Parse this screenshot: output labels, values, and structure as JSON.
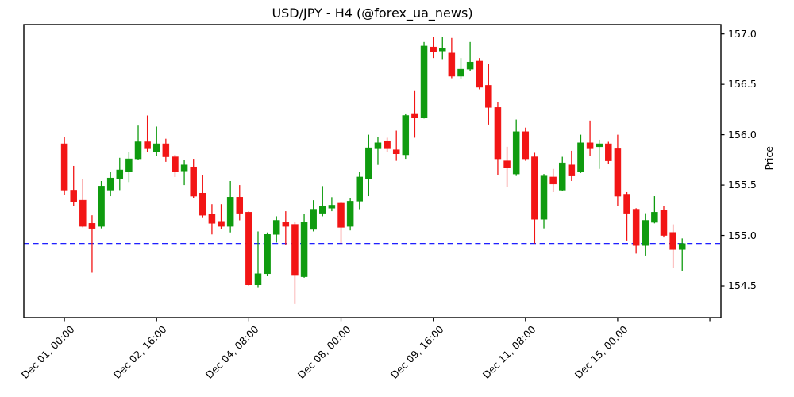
{
  "figure": {
    "background": "#ffffff"
  },
  "chart_data": {
    "type": "candlestick",
    "title": "USD/JPY - H4 (@forex_ua_news)",
    "pair": "USD/JPY",
    "timeframe": "H4",
    "source": "@forex_ua_news",
    "xlabel": "",
    "ylabel": "Price",
    "grid": false,
    "legend": "none",
    "up_color": "#0f9b0f",
    "down_color": "#f21515",
    "axis_color": "#000000",
    "hline": {
      "value": 154.92,
      "color": "#0000ff",
      "style": "dashed"
    },
    "ylim": [
      154.185,
      157.092
    ],
    "xlim": [
      -4.4,
      71.2
    ],
    "yticks": [
      {
        "value": 154.5,
        "label": "154.5"
      },
      {
        "value": 155.0,
        "label": "155.0"
      },
      {
        "value": 155.5,
        "label": "155.5"
      },
      {
        "value": 156.0,
        "label": "156.0"
      },
      {
        "value": 156.5,
        "label": "156.5"
      },
      {
        "value": 157.0,
        "label": "157.0"
      }
    ],
    "xticks": [
      {
        "index": 0,
        "label": "Dec 01, 00:00"
      },
      {
        "index": 10,
        "label": "Dec 02, 16:00"
      },
      {
        "index": 20,
        "label": "Dec 04, 08:00"
      },
      {
        "index": 30,
        "label": "Dec 08, 00:00"
      },
      {
        "index": 40,
        "label": "Dec 09, 16:00"
      },
      {
        "index": 50,
        "label": "Dec 11, 08:00"
      },
      {
        "index": 60,
        "label": "Dec 15, 00:00"
      },
      {
        "index": 70,
        "label": ""
      }
    ],
    "ohlc_format": [
      "open",
      "high",
      "low",
      "close"
    ],
    "ohlc": [
      [
        155.91,
        155.98,
        155.4,
        155.45
      ],
      [
        155.45,
        155.69,
        155.29,
        155.33
      ],
      [
        155.35,
        155.56,
        155.08,
        155.09
      ],
      [
        155.12,
        155.2,
        154.63,
        155.07
      ],
      [
        155.09,
        155.54,
        155.07,
        155.49
      ],
      [
        155.45,
        155.63,
        155.39,
        155.57
      ],
      [
        155.56,
        155.77,
        155.45,
        155.65
      ],
      [
        155.63,
        155.83,
        155.53,
        155.76
      ],
      [
        155.76,
        156.09,
        155.75,
        155.93
      ],
      [
        155.93,
        156.19,
        155.83,
        155.86
      ],
      [
        155.83,
        156.08,
        155.79,
        155.91
      ],
      [
        155.91,
        155.96,
        155.73,
        155.78
      ],
      [
        155.78,
        155.8,
        155.58,
        155.63
      ],
      [
        155.64,
        155.75,
        155.5,
        155.7
      ],
      [
        155.68,
        155.76,
        155.37,
        155.39
      ],
      [
        155.42,
        155.6,
        155.18,
        155.2
      ],
      [
        155.21,
        155.31,
        155.01,
        155.12
      ],
      [
        155.14,
        155.31,
        155.06,
        155.09
      ],
      [
        155.09,
        155.54,
        155.03,
        155.38
      ],
      [
        155.38,
        155.5,
        155.15,
        155.22
      ],
      [
        155.23,
        155.24,
        154.5,
        154.51
      ],
      [
        154.51,
        155.04,
        154.48,
        154.62
      ],
      [
        154.62,
        155.03,
        154.6,
        155.01
      ],
      [
        155.01,
        155.19,
        154.93,
        155.15
      ],
      [
        155.13,
        155.24,
        154.91,
        155.09
      ],
      [
        155.11,
        155.13,
        154.32,
        154.61
      ],
      [
        154.59,
        155.21,
        154.58,
        155.13
      ],
      [
        155.06,
        155.35,
        155.04,
        155.26
      ],
      [
        155.22,
        155.49,
        155.19,
        155.29
      ],
      [
        155.27,
        155.38,
        155.24,
        155.3
      ],
      [
        155.32,
        155.33,
        154.92,
        155.08
      ],
      [
        155.09,
        155.37,
        155.05,
        155.34
      ],
      [
        155.34,
        155.63,
        155.26,
        155.58
      ],
      [
        155.56,
        156.0,
        155.39,
        155.87
      ],
      [
        155.86,
        155.98,
        155.7,
        155.92
      ],
      [
        155.94,
        155.97,
        155.83,
        155.86
      ],
      [
        155.85,
        156.04,
        155.74,
        155.81
      ],
      [
        155.8,
        156.21,
        155.76,
        156.19
      ],
      [
        156.21,
        156.44,
        155.97,
        156.17
      ],
      [
        156.17,
        156.92,
        156.16,
        156.88
      ],
      [
        156.87,
        156.97,
        156.76,
        156.82
      ],
      [
        156.83,
        156.97,
        156.75,
        156.86
      ],
      [
        156.81,
        156.96,
        156.56,
        156.58
      ],
      [
        156.58,
        156.76,
        156.55,
        156.65
      ],
      [
        156.65,
        156.92,
        156.63,
        156.72
      ],
      [
        156.73,
        156.76,
        156.45,
        156.47
      ],
      [
        156.49,
        156.7,
        156.1,
        156.27
      ],
      [
        156.27,
        156.32,
        155.6,
        155.76
      ],
      [
        155.74,
        155.88,
        155.48,
        155.67
      ],
      [
        155.61,
        156.15,
        155.59,
        156.03
      ],
      [
        156.03,
        156.07,
        155.74,
        155.76
      ],
      [
        155.78,
        155.82,
        154.92,
        155.16
      ],
      [
        155.16,
        155.61,
        155.07,
        155.59
      ],
      [
        155.58,
        155.66,
        155.43,
        155.51
      ],
      [
        155.45,
        155.78,
        155.44,
        155.72
      ],
      [
        155.7,
        155.84,
        155.54,
        155.59
      ],
      [
        155.63,
        156.0,
        155.62,
        155.92
      ],
      [
        155.92,
        156.14,
        155.79,
        155.86
      ],
      [
        155.88,
        155.95,
        155.66,
        155.91
      ],
      [
        155.91,
        155.93,
        155.71,
        155.74
      ],
      [
        155.86,
        156.0,
        155.29,
        155.39
      ],
      [
        155.41,
        155.43,
        154.95,
        155.22
      ],
      [
        155.26,
        155.27,
        154.82,
        154.9
      ],
      [
        154.9,
        155.22,
        154.8,
        155.15
      ],
      [
        155.13,
        155.39,
        155.12,
        155.23
      ],
      [
        155.25,
        155.29,
        154.98,
        155.0
      ],
      [
        155.03,
        155.11,
        154.68,
        154.86
      ],
      [
        154.86,
        154.97,
        154.65,
        154.92
      ]
    ]
  }
}
